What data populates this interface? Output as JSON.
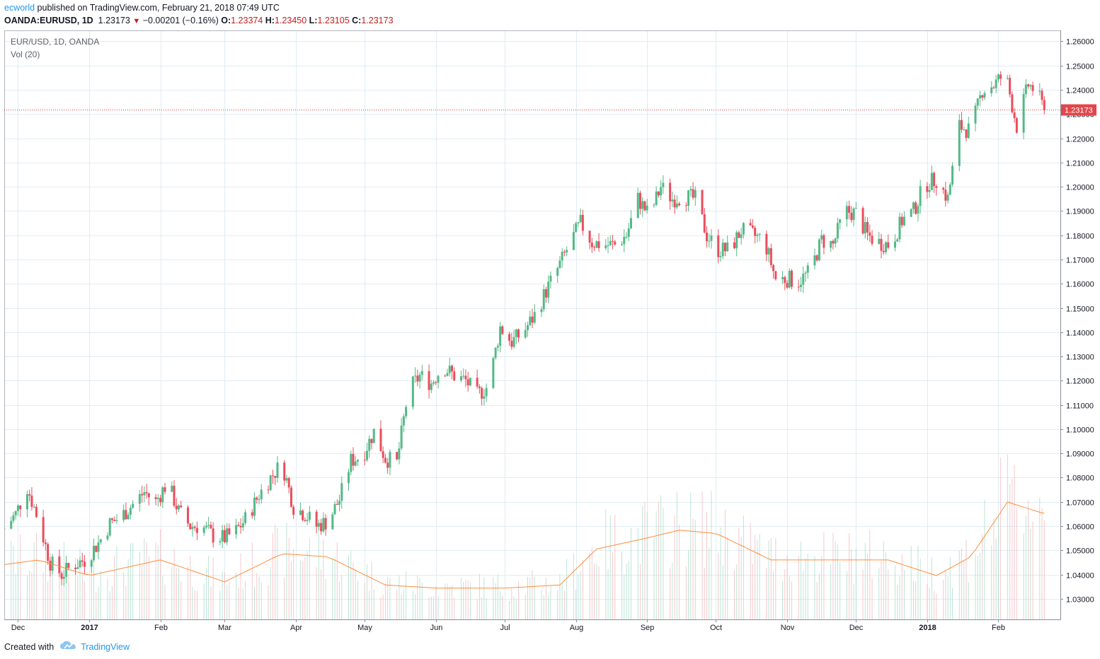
{
  "header": {
    "author": "ecworld",
    "published_text": " published on TradingView.com, February 21, 2018 07:49 UTC",
    "symbol": "OANDA:EURUSD, 1D",
    "last": "1.23173",
    "change": "−0.00201 (−0.16%)",
    "open_label": "O:",
    "open": "1.23374",
    "high_label": "H:",
    "high": "1.23450",
    "low_label": "L:",
    "low": "1.23105",
    "close_label": "C:",
    "close": "1.23173",
    "down_arrow_icon": "triangle-down-icon"
  },
  "legend": {
    "series_title": "EUR/USD, 1D, OANDA",
    "volume_title": "Vol (20)"
  },
  "footer": {
    "created_with": "Created with",
    "brand": "TradingView",
    "brand_icon": "tradingview-cloud-icon"
  },
  "colors": {
    "up": "#26a69a",
    "down": "#ef5350",
    "candle_up": "#53b987",
    "candle_down": "#eb4d5c",
    "grid": "#e1ecf2",
    "ma": "#ff8c3a",
    "last_price": "#d93a3a",
    "axis_text": "#131722"
  },
  "chart_data": {
    "type": "candlestick",
    "title": "EUR/USD, 1D, OANDA",
    "x_axis_labels": [
      "Dec",
      "2017",
      "Feb",
      "Mar",
      "Apr",
      "May",
      "Jun",
      "Jul",
      "Aug",
      "Sep",
      "Oct",
      "Nov",
      "Dec",
      "2018",
      "Feb"
    ],
    "y_ticks": [
      "1.26000",
      "1.25000",
      "1.24000",
      "1.23000",
      "1.22000",
      "1.21000",
      "1.20000",
      "1.19000",
      "1.18000",
      "1.17000",
      "1.16000",
      "1.15000",
      "1.14000",
      "1.13000",
      "1.12000",
      "1.11000",
      "1.10000",
      "1.09000",
      "1.08000",
      "1.07000",
      "1.06000",
      "1.05000",
      "1.04000",
      "1.03000"
    ],
    "y_range": [
      1.0215,
      1.2645
    ],
    "last_price": 1.23173,
    "last_price_label": "1.23173",
    "x_range": [
      "2016-11-25",
      "2018-02-28"
    ],
    "month_ticks": [
      "2016-12-01",
      "2017-01-01",
      "2017-02-01",
      "2017-03-01",
      "2017-04-01",
      "2017-05-01",
      "2017-06-01",
      "2017-07-01",
      "2017-08-01",
      "2017-09-01",
      "2017-10-01",
      "2017-11-01",
      "2017-12-01",
      "2018-01-01",
      "2018-02-01"
    ],
    "closes": [
      [
        "2016-11-25",
        1.059
      ],
      [
        "2016-11-30",
        1.065
      ],
      [
        "2016-12-05",
        1.076
      ],
      [
        "2016-12-10",
        1.062
      ],
      [
        "2016-12-15",
        1.045
      ],
      [
        "2016-12-20",
        1.04
      ],
      [
        "2016-12-25",
        1.044
      ],
      [
        "2016-12-30",
        1.046
      ],
      [
        "2017-01-05",
        1.053
      ],
      [
        "2017-01-10",
        1.061
      ],
      [
        "2017-01-15",
        1.064
      ],
      [
        "2017-01-20",
        1.069
      ],
      [
        "2017-01-25",
        1.074
      ],
      [
        "2017-01-30",
        1.07
      ],
      [
        "2017-02-04",
        1.078
      ],
      [
        "2017-02-09",
        1.066
      ],
      [
        "2017-02-14",
        1.06
      ],
      [
        "2017-02-19",
        1.06
      ],
      [
        "2017-02-24",
        1.056
      ],
      [
        "2017-03-01",
        1.055
      ],
      [
        "2017-03-06",
        1.058
      ],
      [
        "2017-03-11",
        1.064
      ],
      [
        "2017-03-16",
        1.073
      ],
      [
        "2017-03-21",
        1.08
      ],
      [
        "2017-03-26",
        1.086
      ],
      [
        "2017-03-31",
        1.068
      ],
      [
        "2017-04-05",
        1.065
      ],
      [
        "2017-04-10",
        1.06
      ],
      [
        "2017-04-15",
        1.062
      ],
      [
        "2017-04-20",
        1.071
      ],
      [
        "2017-04-25",
        1.087
      ],
      [
        "2017-04-30",
        1.089
      ],
      [
        "2017-05-05",
        1.099
      ],
      [
        "2017-05-10",
        1.088
      ],
      [
        "2017-05-15",
        1.086
      ],
      [
        "2017-05-20",
        1.116
      ],
      [
        "2017-05-25",
        1.122
      ],
      [
        "2017-05-30",
        1.119
      ],
      [
        "2017-06-04",
        1.126
      ],
      [
        "2017-06-09",
        1.122
      ],
      [
        "2017-06-14",
        1.12
      ],
      [
        "2017-06-19",
        1.114
      ],
      [
        "2017-06-24",
        1.118
      ],
      [
        "2017-06-29",
        1.142
      ],
      [
        "2017-07-04",
        1.136
      ],
      [
        "2017-07-09",
        1.14
      ],
      [
        "2017-07-14",
        1.147
      ],
      [
        "2017-07-19",
        1.157
      ],
      [
        "2017-07-24",
        1.166
      ],
      [
        "2017-07-29",
        1.176
      ],
      [
        "2017-08-03",
        1.185
      ],
      [
        "2017-08-08",
        1.177
      ],
      [
        "2017-08-13",
        1.176
      ],
      [
        "2017-08-18",
        1.176
      ],
      [
        "2017-08-23",
        1.18
      ],
      [
        "2017-08-28",
        1.195
      ],
      [
        "2017-09-02",
        1.188
      ],
      [
        "2017-09-07",
        1.2
      ],
      [
        "2017-09-12",
        1.195
      ],
      [
        "2017-09-17",
        1.196
      ],
      [
        "2017-09-22",
        1.195
      ],
      [
        "2017-09-27",
        1.18
      ],
      [
        "2017-10-02",
        1.174
      ],
      [
        "2017-10-07",
        1.174
      ],
      [
        "2017-10-12",
        1.182
      ],
      [
        "2017-10-17",
        1.18
      ],
      [
        "2017-10-22",
        1.178
      ],
      [
        "2017-10-27",
        1.162
      ],
      [
        "2017-11-01",
        1.162
      ],
      [
        "2017-11-06",
        1.161
      ],
      [
        "2017-11-11",
        1.165
      ],
      [
        "2017-11-16",
        1.178
      ],
      [
        "2017-11-21",
        1.176
      ],
      [
        "2017-11-26",
        1.19
      ],
      [
        "2017-12-01",
        1.189
      ],
      [
        "2017-12-06",
        1.18
      ],
      [
        "2017-12-11",
        1.177
      ],
      [
        "2017-12-16",
        1.176
      ],
      [
        "2017-12-21",
        1.186
      ],
      [
        "2017-12-26",
        1.19
      ],
      [
        "2017-12-31",
        1.201
      ],
      [
        "2018-01-05",
        1.203
      ],
      [
        "2018-01-10",
        1.195
      ],
      [
        "2018-01-15",
        1.225
      ],
      [
        "2018-01-20",
        1.223
      ],
      [
        "2018-01-25",
        1.24
      ],
      [
        "2018-01-30",
        1.242
      ],
      [
        "2018-02-04",
        1.247
      ],
      [
        "2018-02-09",
        1.225
      ],
      [
        "2018-02-14",
        1.242
      ],
      [
        "2018-02-17",
        1.24
      ],
      [
        "2018-02-21",
        1.2317
      ]
    ],
    "volume_ma_level": [
      [
        "2016-11-25",
        0.35
      ],
      [
        "2016-12-10",
        0.38
      ],
      [
        "2017-01-01",
        0.28
      ],
      [
        "2017-02-01",
        0.38
      ],
      [
        "2017-03-01",
        0.24
      ],
      [
        "2017-03-26",
        0.42
      ],
      [
        "2017-04-15",
        0.4
      ],
      [
        "2017-05-10",
        0.22
      ],
      [
        "2017-06-01",
        0.2
      ],
      [
        "2017-07-01",
        0.2
      ],
      [
        "2017-07-25",
        0.22
      ],
      [
        "2017-08-10",
        0.45
      ],
      [
        "2017-09-01",
        0.52
      ],
      [
        "2017-09-15",
        0.57
      ],
      [
        "2017-10-01",
        0.55
      ],
      [
        "2017-10-25",
        0.38
      ],
      [
        "2017-11-15",
        0.38
      ],
      [
        "2017-12-15",
        0.38
      ],
      [
        "2018-01-05",
        0.28
      ],
      [
        "2018-01-20",
        0.4
      ],
      [
        "2018-02-05",
        0.75
      ],
      [
        "2018-02-20",
        0.68
      ]
    ]
  }
}
